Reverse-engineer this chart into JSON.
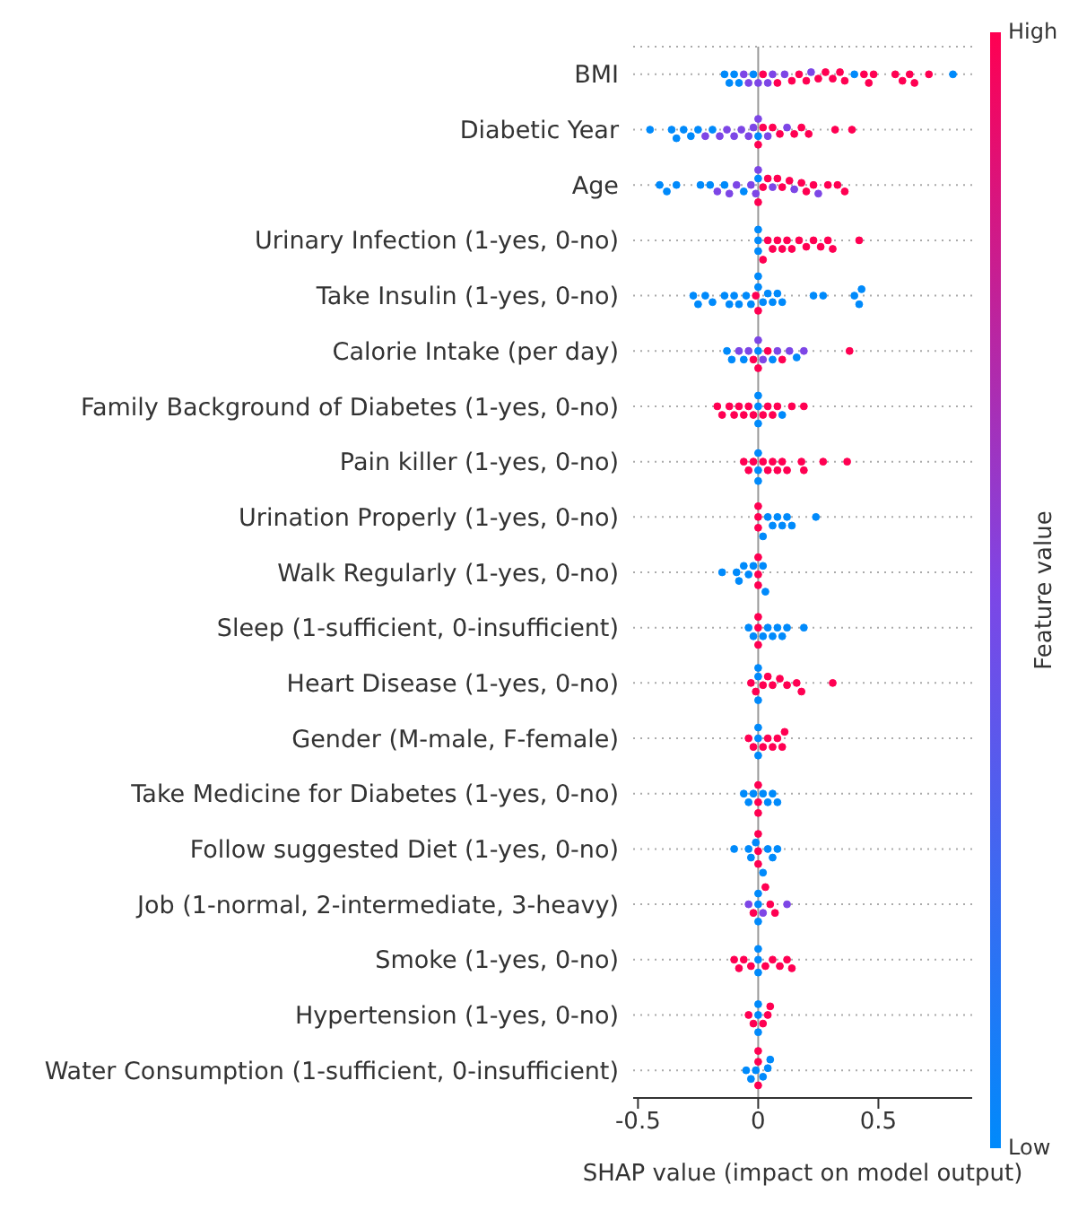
{
  "chart_data": {
    "type": "scatter",
    "orientation": "horizontal",
    "xlabel": "SHAP value (impact on model output)",
    "clabel": "Feature value",
    "clim": [
      0,
      1
    ],
    "cticks": [
      {
        "value": 0,
        "label": "Low"
      },
      {
        "value": 1,
        "label": "High"
      }
    ],
    "xlim": [
      -0.52,
      0.89
    ],
    "xticks": [
      -0.5,
      0,
      0.5
    ],
    "grid": "y",
    "legend": false,
    "marker": "circle",
    "ref_lines": [
      {
        "axis": "x",
        "value": 0,
        "color": "#999999"
      }
    ],
    "categories": [
      "BMI",
      "Diabetic Year",
      "Age",
      "Urinary Infection (1-yes, 0-no)",
      "Take Insulin (1-yes, 0-no)",
      "Calorie Intake (per day)",
      "Family Background of Diabetes (1-yes, 0-no)",
      "Pain killer (1-yes, 0-no)",
      "Urination Properly (1-yes, 0-no)",
      "Walk Regularly (1-yes, 0-no)",
      "Sleep (1-sufficient, 0-insufficient)",
      "Heart Disease (1-yes, 0-no)",
      "Gender (M-male, F-female)",
      "Take Medicine for Diabetes (1-yes, 0-no)",
      "Follow suggested Diet (1-yes, 0-no)",
      "Job (1-normal, 2-intermediate, 3-heavy)",
      "Smoke (1-yes, 0-no)",
      "Hypertension (1-yes, 0-no)",
      "Water Consumption (1-sufficient, 0-insufficient)"
    ],
    "series": [
      {
        "x": [
          "BMI",
          "BMI",
          "BMI",
          "BMI",
          "BMI",
          "BMI",
          "BMI",
          "BMI",
          "BMI",
          "BMI",
          "BMI",
          "BMI",
          "BMI",
          "BMI",
          "BMI",
          "BMI",
          "BMI",
          "BMI",
          "BMI",
          "BMI",
          "BMI",
          "BMI",
          "BMI",
          "BMI",
          "BMI",
          "BMI",
          "BMI",
          "BMI",
          "BMI",
          "BMI",
          "BMI",
          "BMI"
        ],
        "values": [
          -0.14,
          -0.12,
          -0.1,
          -0.08,
          -0.06,
          -0.04,
          -0.02,
          0,
          0.02,
          0.04,
          0.06,
          0.08,
          0.11,
          0.14,
          0.17,
          0.2,
          0.22,
          0.25,
          0.28,
          0.31,
          0.34,
          0.36,
          0.4,
          0.44,
          0.46,
          0.48,
          0.57,
          0.6,
          0.63,
          0.65,
          0.71,
          0.81
        ],
        "cvalues": [
          0,
          0,
          0,
          0,
          0.5,
          0.5,
          0,
          0.5,
          1,
          0.5,
          0.5,
          1,
          0.5,
          1,
          1,
          1,
          0.5,
          1,
          1,
          1,
          1,
          1,
          0,
          1,
          1,
          1,
          1,
          1,
          1,
          1,
          1,
          0
        ],
        "colors": [
          "#008afb",
          "#008afb",
          "#008afb",
          "#008afb",
          "#7d46e6",
          "#7d46e6",
          "#008afb",
          "#7d46e6",
          "#ff0052",
          "#7d46e6",
          "#7d46e6",
          "#ff0052",
          "#7d46e6",
          "#ff0052",
          "#ff0052",
          "#ff0052",
          "#7d46e6",
          "#ff0052",
          "#ff0052",
          "#ff0052",
          "#ff0052",
          "#ff0052",
          "#008afb",
          "#ff0052",
          "#ff0052",
          "#ff0052",
          "#ff0052",
          "#ff0052",
          "#ff0052",
          "#ff0052",
          "#ff0052",
          "#008afb"
        ]
      },
      {
        "x": [
          "Diabetic Year",
          "Diabetic Year",
          "Diabetic Year",
          "Diabetic Year",
          "Diabetic Year",
          "Diabetic Year",
          "Diabetic Year",
          "Diabetic Year",
          "Diabetic Year",
          "Diabetic Year",
          "Diabetic Year",
          "Diabetic Year",
          "Diabetic Year",
          "Diabetic Year",
          "Diabetic Year",
          "Diabetic Year",
          "Diabetic Year",
          "Diabetic Year",
          "Diabetic Year",
          "Diabetic Year",
          "Diabetic Year",
          "Diabetic Year",
          "Diabetic Year",
          "Diabetic Year",
          "Diabetic Year",
          "Diabetic Year",
          "Diabetic Year"
        ],
        "values": [
          -0.45,
          -0.36,
          -0.34,
          -0.31,
          -0.28,
          -0.25,
          -0.22,
          -0.19,
          -0.16,
          -0.13,
          -0.1,
          -0.07,
          -0.04,
          -0.02,
          0,
          0,
          0,
          0.02,
          0.04,
          0.06,
          0.09,
          0.12,
          0.15,
          0.18,
          0.21,
          0.32,
          0.39
        ],
        "cvalues": [
          0,
          0,
          0,
          0,
          0,
          0,
          0.5,
          0,
          0.5,
          0.5,
          0.5,
          0.5,
          0.5,
          0.5,
          0,
          0.5,
          1,
          1,
          0.5,
          1,
          1,
          0.5,
          1,
          1,
          1,
          1,
          1
        ],
        "colors": [
          "#008afb",
          "#008afb",
          "#008afb",
          "#008afb",
          "#008afb",
          "#008afb",
          "#7d46e6",
          "#008afb",
          "#7d46e6",
          "#7d46e6",
          "#7d46e6",
          "#7d46e6",
          "#7d46e6",
          "#7d46e6",
          "#008afb",
          "#7d46e6",
          "#ff0052",
          "#ff0052",
          "#7d46e6",
          "#ff0052",
          "#ff0052",
          "#7d46e6",
          "#ff0052",
          "#ff0052",
          "#ff0052",
          "#ff0052",
          "#ff0052"
        ]
      },
      {
        "x": [
          "Age",
          "Age",
          "Age",
          "Age",
          "Age",
          "Age",
          "Age",
          "Age",
          "Age",
          "Age",
          "Age",
          "Age",
          "Age",
          "Age",
          "Age",
          "Age",
          "Age",
          "Age",
          "Age",
          "Age",
          "Age",
          "Age",
          "Age",
          "Age",
          "Age",
          "Age",
          "Age",
          "Age",
          "Age"
        ],
        "values": [
          -0.41,
          -0.38,
          -0.34,
          -0.24,
          -0.2,
          -0.17,
          -0.14,
          -0.12,
          -0.09,
          -0.06,
          -0.03,
          -0.01,
          0,
          0,
          0,
          0.02,
          0.04,
          0.06,
          0.08,
          0.1,
          0.13,
          0.15,
          0.18,
          0.2,
          0.23,
          0.25,
          0.29,
          0.33,
          0.36
        ],
        "cvalues": [
          0,
          0,
          0,
          0,
          0,
          0.5,
          0,
          0.5,
          0.5,
          0,
          0.5,
          0.5,
          0,
          0.5,
          1,
          1,
          1,
          0.5,
          1,
          1,
          1,
          0.5,
          1,
          1,
          1,
          0.5,
          1,
          1,
          1
        ],
        "colors": [
          "#008afb",
          "#008afb",
          "#008afb",
          "#008afb",
          "#008afb",
          "#7d46e6",
          "#008afb",
          "#7d46e6",
          "#7d46e6",
          "#008afb",
          "#7d46e6",
          "#7d46e6",
          "#008afb",
          "#7d46e6",
          "#ff0052",
          "#ff0052",
          "#ff0052",
          "#7d46e6",
          "#ff0052",
          "#ff0052",
          "#ff0052",
          "#7d46e6",
          "#ff0052",
          "#ff0052",
          "#ff0052",
          "#7d46e6",
          "#ff0052",
          "#ff0052",
          "#ff0052"
        ]
      },
      {
        "x": [
          "Urinary Infection (1-yes, 0-no)",
          "Urinary Infection (1-yes, 0-no)",
          "Urinary Infection (1-yes, 0-no)",
          "Urinary Infection (1-yes, 0-no)",
          "Urinary Infection (1-yes, 0-no)",
          "Urinary Infection (1-yes, 0-no)",
          "Urinary Infection (1-yes, 0-no)",
          "Urinary Infection (1-yes, 0-no)",
          "Urinary Infection (1-yes, 0-no)",
          "Urinary Infection (1-yes, 0-no)",
          "Urinary Infection (1-yes, 0-no)",
          "Urinary Infection (1-yes, 0-no)",
          "Urinary Infection (1-yes, 0-no)",
          "Urinary Infection (1-yes, 0-no)",
          "Urinary Infection (1-yes, 0-no)",
          "Urinary Infection (1-yes, 0-no)",
          "Urinary Infection (1-yes, 0-no)"
        ],
        "values": [
          0,
          0,
          0,
          0.02,
          0.04,
          0.06,
          0.08,
          0.1,
          0.12,
          0.14,
          0.17,
          0.2,
          0.23,
          0.26,
          0.29,
          0.31,
          0.42
        ],
        "cvalues": [
          0,
          0,
          0,
          1,
          1,
          1,
          1,
          1,
          1,
          1,
          1,
          1,
          1,
          1,
          1,
          1,
          1
        ],
        "colors": [
          "#008afb",
          "#008afb",
          "#008afb",
          "#ff0052",
          "#ff0052",
          "#ff0052",
          "#ff0052",
          "#ff0052",
          "#ff0052",
          "#ff0052",
          "#ff0052",
          "#ff0052",
          "#ff0052",
          "#ff0052",
          "#ff0052",
          "#ff0052",
          "#ff0052"
        ]
      },
      {
        "x": [
          "Take Insulin (1-yes, 0-no)",
          "Take Insulin (1-yes, 0-no)",
          "Take Insulin (1-yes, 0-no)",
          "Take Insulin (1-yes, 0-no)",
          "Take Insulin (1-yes, 0-no)",
          "Take Insulin (1-yes, 0-no)",
          "Take Insulin (1-yes, 0-no)",
          "Take Insulin (1-yes, 0-no)",
          "Take Insulin (1-yes, 0-no)",
          "Take Insulin (1-yes, 0-no)",
          "Take Insulin (1-yes, 0-no)",
          "Take Insulin (1-yes, 0-no)",
          "Take Insulin (1-yes, 0-no)",
          "Take Insulin (1-yes, 0-no)",
          "Take Insulin (1-yes, 0-no)",
          "Take Insulin (1-yes, 0-no)",
          "Take Insulin (1-yes, 0-no)",
          "Take Insulin (1-yes, 0-no)",
          "Take Insulin (1-yes, 0-no)",
          "Take Insulin (1-yes, 0-no)",
          "Take Insulin (1-yes, 0-no)",
          "Take Insulin (1-yes, 0-no)",
          "Take Insulin (1-yes, 0-no)",
          "Take Insulin (1-yes, 0-no)"
        ],
        "values": [
          -0.27,
          -0.25,
          -0.22,
          -0.19,
          -0.14,
          -0.12,
          -0.1,
          -0.08,
          -0.05,
          -0.03,
          -0.01,
          0,
          0,
          0,
          0.02,
          0.04,
          0.06,
          0.08,
          0.1,
          0.23,
          0.27,
          0.4,
          0.42,
          0.43
        ],
        "cvalues": [
          0,
          0,
          0,
          0,
          0,
          0,
          0,
          0,
          0,
          0,
          1,
          0,
          1,
          0,
          0,
          0,
          0,
          0,
          0,
          0,
          0,
          0,
          0,
          0
        ],
        "colors": [
          "#008afb",
          "#008afb",
          "#008afb",
          "#008afb",
          "#008afb",
          "#008afb",
          "#008afb",
          "#008afb",
          "#008afb",
          "#008afb",
          "#ff0052",
          "#008afb",
          "#ff0052",
          "#008afb",
          "#008afb",
          "#008afb",
          "#008afb",
          "#008afb",
          "#008afb",
          "#008afb",
          "#008afb",
          "#008afb",
          "#008afb",
          "#008afb"
        ]
      },
      {
        "x": [
          "Calorie Intake (per day)",
          "Calorie Intake (per day)",
          "Calorie Intake (per day)",
          "Calorie Intake (per day)",
          "Calorie Intake (per day)",
          "Calorie Intake (per day)",
          "Calorie Intake (per day)",
          "Calorie Intake (per day)",
          "Calorie Intake (per day)",
          "Calorie Intake (per day)",
          "Calorie Intake (per day)",
          "Calorie Intake (per day)",
          "Calorie Intake (per day)",
          "Calorie Intake (per day)",
          "Calorie Intake (per day)",
          "Calorie Intake (per day)",
          "Calorie Intake (per day)",
          "Calorie Intake (per day)"
        ],
        "values": [
          -0.13,
          -0.11,
          -0.08,
          -0.06,
          -0.04,
          -0.02,
          0,
          0,
          0,
          0.02,
          0.04,
          0.06,
          0.08,
          0.1,
          0.13,
          0.16,
          0.19,
          0.38
        ],
        "cvalues": [
          0,
          0,
          0.5,
          0,
          0.5,
          1,
          0,
          0.5,
          1,
          0.5,
          1,
          0,
          0.5,
          1,
          0.5,
          0,
          0.5,
          1
        ],
        "colors": [
          "#008afb",
          "#008afb",
          "#7d46e6",
          "#008afb",
          "#7d46e6",
          "#ff0052",
          "#008afb",
          "#7d46e6",
          "#ff0052",
          "#7d46e6",
          "#ff0052",
          "#008afb",
          "#7d46e6",
          "#ff0052",
          "#7d46e6",
          "#008afb",
          "#7d46e6",
          "#ff0052"
        ]
      },
      {
        "x": [
          "Family Background of Diabetes (1-yes, 0-no)",
          "Family Background of Diabetes (1-yes, 0-no)",
          "Family Background of Diabetes (1-yes, 0-no)",
          "Family Background of Diabetes (1-yes, 0-no)",
          "Family Background of Diabetes (1-yes, 0-no)",
          "Family Background of Diabetes (1-yes, 0-no)",
          "Family Background of Diabetes (1-yes, 0-no)",
          "Family Background of Diabetes (1-yes, 0-no)",
          "Family Background of Diabetes (1-yes, 0-no)",
          "Family Background of Diabetes (1-yes, 0-no)",
          "Family Background of Diabetes (1-yes, 0-no)",
          "Family Background of Diabetes (1-yes, 0-no)",
          "Family Background of Diabetes (1-yes, 0-no)",
          "Family Background of Diabetes (1-yes, 0-no)",
          "Family Background of Diabetes (1-yes, 0-no)",
          "Family Background of Diabetes (1-yes, 0-no)",
          "Family Background of Diabetes (1-yes, 0-no)",
          "Family Background of Diabetes (1-yes, 0-no)"
        ],
        "values": [
          -0.17,
          -0.15,
          -0.12,
          -0.1,
          -0.08,
          -0.06,
          -0.04,
          -0.02,
          0,
          0,
          0,
          0.02,
          0.04,
          0.06,
          0.08,
          0.1,
          0.14,
          0.19
        ],
        "cvalues": [
          1,
          1,
          1,
          1,
          1,
          1,
          1,
          1,
          0,
          0,
          0,
          1,
          1,
          1,
          1,
          0,
          1,
          1
        ],
        "colors": [
          "#ff0052",
          "#ff0052",
          "#ff0052",
          "#ff0052",
          "#ff0052",
          "#ff0052",
          "#ff0052",
          "#ff0052",
          "#008afb",
          "#008afb",
          "#008afb",
          "#ff0052",
          "#ff0052",
          "#ff0052",
          "#ff0052",
          "#008afb",
          "#ff0052",
          "#ff0052"
        ]
      },
      {
        "x": [
          "Pain killer (1-yes, 0-no)",
          "Pain killer (1-yes, 0-no)",
          "Pain killer (1-yes, 0-no)",
          "Pain killer (1-yes, 0-no)",
          "Pain killer (1-yes, 0-no)",
          "Pain killer (1-yes, 0-no)",
          "Pain killer (1-yes, 0-no)",
          "Pain killer (1-yes, 0-no)",
          "Pain killer (1-yes, 0-no)",
          "Pain killer (1-yes, 0-no)",
          "Pain killer (1-yes, 0-no)",
          "Pain killer (1-yes, 0-no)",
          "Pain killer (1-yes, 0-no)",
          "Pain killer (1-yes, 0-no)",
          "Pain killer (1-yes, 0-no)",
          "Pain killer (1-yes, 0-no)"
        ],
        "values": [
          -0.06,
          -0.04,
          -0.02,
          0,
          0,
          0,
          0.02,
          0.04,
          0.06,
          0.08,
          0.1,
          0.12,
          0.18,
          0.19,
          0.27,
          0.37
        ],
        "cvalues": [
          1,
          1,
          1,
          0,
          0,
          0,
          1,
          1,
          1,
          1,
          1,
          1,
          1,
          1,
          1,
          1
        ],
        "colors": [
          "#ff0052",
          "#ff0052",
          "#ff0052",
          "#008afb",
          "#008afb",
          "#008afb",
          "#ff0052",
          "#ff0052",
          "#ff0052",
          "#ff0052",
          "#ff0052",
          "#ff0052",
          "#ff0052",
          "#ff0052",
          "#ff0052",
          "#ff0052"
        ]
      },
      {
        "x": [
          "Urination Properly (1-yes, 0-no)",
          "Urination Properly (1-yes, 0-no)",
          "Urination Properly (1-yes, 0-no)",
          "Urination Properly (1-yes, 0-no)",
          "Urination Properly (1-yes, 0-no)",
          "Urination Properly (1-yes, 0-no)",
          "Urination Properly (1-yes, 0-no)",
          "Urination Properly (1-yes, 0-no)",
          "Urination Properly (1-yes, 0-no)",
          "Urination Properly (1-yes, 0-no)",
          "Urination Properly (1-yes, 0-no)"
        ],
        "values": [
          0,
          0,
          0,
          0.02,
          0.04,
          0.06,
          0.08,
          0.1,
          0.12,
          0.14,
          0.24
        ],
        "cvalues": [
          1,
          1,
          1,
          0,
          0,
          0,
          0,
          0,
          0,
          0,
          0
        ],
        "colors": [
          "#ff0052",
          "#ff0052",
          "#ff0052",
          "#008afb",
          "#008afb",
          "#008afb",
          "#008afb",
          "#008afb",
          "#008afb",
          "#008afb",
          "#008afb"
        ]
      },
      {
        "x": [
          "Walk Regularly (1-yes, 0-no)",
          "Walk Regularly (1-yes, 0-no)",
          "Walk Regularly (1-yes, 0-no)",
          "Walk Regularly (1-yes, 0-no)",
          "Walk Regularly (1-yes, 0-no)",
          "Walk Regularly (1-yes, 0-no)",
          "Walk Regularly (1-yes, 0-no)",
          "Walk Regularly (1-yes, 0-no)",
          "Walk Regularly (1-yes, 0-no)",
          "Walk Regularly (1-yes, 0-no)",
          "Walk Regularly (1-yes, 0-no)"
        ],
        "values": [
          -0.15,
          -0.09,
          -0.08,
          -0.06,
          -0.04,
          -0.02,
          0,
          0,
          0,
          0.02,
          0.03
        ],
        "cvalues": [
          0,
          0,
          0,
          0,
          0,
          0,
          1,
          1,
          1,
          0,
          0
        ],
        "colors": [
          "#008afb",
          "#008afb",
          "#008afb",
          "#008afb",
          "#008afb",
          "#008afb",
          "#ff0052",
          "#ff0052",
          "#ff0052",
          "#008afb",
          "#008afb"
        ]
      },
      {
        "x": [
          "Sleep (1-sufficient, 0-insufficient)",
          "Sleep (1-sufficient, 0-insufficient)",
          "Sleep (1-sufficient, 0-insufficient)",
          "Sleep (1-sufficient, 0-insufficient)",
          "Sleep (1-sufficient, 0-insufficient)",
          "Sleep (1-sufficient, 0-insufficient)",
          "Sleep (1-sufficient, 0-insufficient)",
          "Sleep (1-sufficient, 0-insufficient)",
          "Sleep (1-sufficient, 0-insufficient)",
          "Sleep (1-sufficient, 0-insufficient)",
          "Sleep (1-sufficient, 0-insufficient)",
          "Sleep (1-sufficient, 0-insufficient)"
        ],
        "values": [
          -0.04,
          -0.02,
          0,
          0,
          0,
          0.02,
          0.04,
          0.06,
          0.08,
          0.1,
          0.12,
          0.19
        ],
        "cvalues": [
          0,
          0,
          1,
          1,
          1,
          0,
          0,
          0,
          0,
          0,
          0,
          0
        ],
        "colors": [
          "#008afb",
          "#008afb",
          "#ff0052",
          "#ff0052",
          "#ff0052",
          "#008afb",
          "#008afb",
          "#008afb",
          "#008afb",
          "#008afb",
          "#008afb",
          "#008afb"
        ]
      },
      {
        "x": [
          "Heart Disease (1-yes, 0-no)",
          "Heart Disease (1-yes, 0-no)",
          "Heart Disease (1-yes, 0-no)",
          "Heart Disease (1-yes, 0-no)",
          "Heart Disease (1-yes, 0-no)",
          "Heart Disease (1-yes, 0-no)",
          "Heart Disease (1-yes, 0-no)",
          "Heart Disease (1-yes, 0-no)",
          "Heart Disease (1-yes, 0-no)",
          "Heart Disease (1-yes, 0-no)",
          "Heart Disease (1-yes, 0-no)",
          "Heart Disease (1-yes, 0-no)",
          "Heart Disease (1-yes, 0-no)"
        ],
        "values": [
          -0.03,
          -0.01,
          0,
          0,
          0,
          0.02,
          0.04,
          0.06,
          0.09,
          0.12,
          0.16,
          0.18,
          0.31
        ],
        "cvalues": [
          1,
          1,
          0,
          0,
          0,
          1,
          1,
          1,
          1,
          1,
          1,
          1,
          1
        ],
        "colors": [
          "#ff0052",
          "#ff0052",
          "#008afb",
          "#008afb",
          "#008afb",
          "#ff0052",
          "#ff0052",
          "#ff0052",
          "#ff0052",
          "#ff0052",
          "#ff0052",
          "#ff0052",
          "#ff0052"
        ]
      },
      {
        "x": [
          "Gender (M-male, F-female)",
          "Gender (M-male, F-female)",
          "Gender (M-male, F-female)",
          "Gender (M-male, F-female)",
          "Gender (M-male, F-female)",
          "Gender (M-male, F-female)",
          "Gender (M-male, F-female)",
          "Gender (M-male, F-female)",
          "Gender (M-male, F-female)",
          "Gender (M-male, F-female)",
          "Gender (M-male, F-female)"
        ],
        "values": [
          -0.04,
          -0.02,
          0,
          0,
          0,
          0.02,
          0.04,
          0.06,
          0.08,
          0.1,
          0.11
        ],
        "cvalues": [
          1,
          1,
          0,
          0,
          0,
          1,
          1,
          1,
          1,
          1,
          1
        ],
        "colors": [
          "#ff0052",
          "#ff0052",
          "#008afb",
          "#008afb",
          "#008afb",
          "#ff0052",
          "#ff0052",
          "#ff0052",
          "#ff0052",
          "#ff0052",
          "#ff0052"
        ]
      },
      {
        "x": [
          "Take Medicine for Diabetes (1-yes, 0-no)",
          "Take Medicine for Diabetes (1-yes, 0-no)",
          "Take Medicine for Diabetes (1-yes, 0-no)",
          "Take Medicine for Diabetes (1-yes, 0-no)",
          "Take Medicine for Diabetes (1-yes, 0-no)",
          "Take Medicine for Diabetes (1-yes, 0-no)",
          "Take Medicine for Diabetes (1-yes, 0-no)",
          "Take Medicine for Diabetes (1-yes, 0-no)",
          "Take Medicine for Diabetes (1-yes, 0-no)",
          "Take Medicine for Diabetes (1-yes, 0-no)"
        ],
        "values": [
          -0.06,
          -0.04,
          -0.02,
          0,
          0,
          0,
          0.02,
          0.04,
          0.06,
          0.08
        ],
        "cvalues": [
          0,
          0,
          0,
          1,
          1,
          1,
          0,
          0,
          0,
          0
        ],
        "colors": [
          "#008afb",
          "#008afb",
          "#008afb",
          "#ff0052",
          "#ff0052",
          "#ff0052",
          "#008afb",
          "#008afb",
          "#008afb",
          "#008afb"
        ]
      },
      {
        "x": [
          "Follow suggested Diet (1-yes, 0-no)",
          "Follow suggested Diet (1-yes, 0-no)",
          "Follow suggested Diet (1-yes, 0-no)",
          "Follow suggested Diet (1-yes, 0-no)",
          "Follow suggested Diet (1-yes, 0-no)",
          "Follow suggested Diet (1-yes, 0-no)",
          "Follow suggested Diet (1-yes, 0-no)",
          "Follow suggested Diet (1-yes, 0-no)",
          "Follow suggested Diet (1-yes, 0-no)",
          "Follow suggested Diet (1-yes, 0-no)",
          "Follow suggested Diet (1-yes, 0-no)"
        ],
        "values": [
          -0.1,
          -0.04,
          -0.03,
          -0.01,
          0,
          0,
          0,
          0.02,
          0.04,
          0.06,
          0.08
        ],
        "cvalues": [
          0,
          0,
          0,
          0,
          1,
          1,
          1,
          0,
          0,
          0,
          0
        ],
        "colors": [
          "#008afb",
          "#008afb",
          "#008afb",
          "#008afb",
          "#ff0052",
          "#ff0052",
          "#ff0052",
          "#008afb",
          "#008afb",
          "#008afb",
          "#008afb"
        ]
      },
      {
        "x": [
          "Job (1-normal, 2-intermediate, 3-heavy)",
          "Job (1-normal, 2-intermediate, 3-heavy)",
          "Job (1-normal, 2-intermediate, 3-heavy)",
          "Job (1-normal, 2-intermediate, 3-heavy)",
          "Job (1-normal, 2-intermediate, 3-heavy)",
          "Job (1-normal, 2-intermediate, 3-heavy)",
          "Job (1-normal, 2-intermediate, 3-heavy)",
          "Job (1-normal, 2-intermediate, 3-heavy)",
          "Job (1-normal, 2-intermediate, 3-heavy)",
          "Job (1-normal, 2-intermediate, 3-heavy)"
        ],
        "values": [
          -0.04,
          -0.02,
          0,
          0,
          0,
          0.02,
          0.03,
          0.05,
          0.07,
          0.12
        ],
        "cvalues": [
          0.5,
          1,
          0,
          0,
          0,
          0.5,
          1,
          1,
          1,
          0.5
        ],
        "colors": [
          "#7d46e6",
          "#ff0052",
          "#008afb",
          "#008afb",
          "#008afb",
          "#7d46e6",
          "#ff0052",
          "#ff0052",
          "#ff0052",
          "#7d46e6"
        ]
      },
      {
        "x": [
          "Smoke (1-yes, 0-no)",
          "Smoke (1-yes, 0-no)",
          "Smoke (1-yes, 0-no)",
          "Smoke (1-yes, 0-no)",
          "Smoke (1-yes, 0-no)",
          "Smoke (1-yes, 0-no)",
          "Smoke (1-yes, 0-no)",
          "Smoke (1-yes, 0-no)",
          "Smoke (1-yes, 0-no)",
          "Smoke (1-yes, 0-no)",
          "Smoke (1-yes, 0-no)",
          "Smoke (1-yes, 0-no)"
        ],
        "values": [
          -0.1,
          -0.08,
          -0.06,
          -0.03,
          0,
          0,
          0,
          0.03,
          0.06,
          0.09,
          0.12,
          0.14
        ],
        "cvalues": [
          1,
          1,
          1,
          1,
          0,
          0,
          0,
          1,
          1,
          1,
          1,
          1
        ],
        "colors": [
          "#ff0052",
          "#ff0052",
          "#ff0052",
          "#ff0052",
          "#008afb",
          "#008afb",
          "#008afb",
          "#ff0052",
          "#ff0052",
          "#ff0052",
          "#ff0052",
          "#ff0052"
        ]
      },
      {
        "x": [
          "Hypertension (1-yes, 0-no)",
          "Hypertension (1-yes, 0-no)",
          "Hypertension (1-yes, 0-no)",
          "Hypertension (1-yes, 0-no)",
          "Hypertension (1-yes, 0-no)",
          "Hypertension (1-yes, 0-no)",
          "Hypertension (1-yes, 0-no)",
          "Hypertension (1-yes, 0-no)"
        ],
        "values": [
          -0.04,
          -0.02,
          0,
          0,
          0,
          0.02,
          0.04,
          0.05
        ],
        "cvalues": [
          1,
          1,
          0,
          0,
          0,
          1,
          1,
          1
        ],
        "colors": [
          "#ff0052",
          "#ff0052",
          "#008afb",
          "#008afb",
          "#008afb",
          "#ff0052",
          "#ff0052",
          "#ff0052"
        ]
      },
      {
        "x": [
          "Water Consumption (1-sufficient, 0-insufficient)",
          "Water Consumption (1-sufficient, 0-insufficient)",
          "Water Consumption (1-sufficient, 0-insufficient)",
          "Water Consumption (1-sufficient, 0-insufficient)",
          "Water Consumption (1-sufficient, 0-insufficient)",
          "Water Consumption (1-sufficient, 0-insufficient)",
          "Water Consumption (1-sufficient, 0-insufficient)",
          "Water Consumption (1-sufficient, 0-insufficient)",
          "Water Consumption (1-sufficient, 0-insufficient)"
        ],
        "values": [
          -0.05,
          -0.03,
          -0.01,
          0,
          0,
          0,
          0.02,
          0.04,
          0.05
        ],
        "cvalues": [
          0,
          0,
          0,
          1,
          1,
          1,
          0,
          0,
          0
        ],
        "colors": [
          "#008afb",
          "#008afb",
          "#008afb",
          "#ff0052",
          "#ff0052",
          "#ff0052",
          "#008afb",
          "#008afb",
          "#008afb"
        ]
      }
    ]
  }
}
